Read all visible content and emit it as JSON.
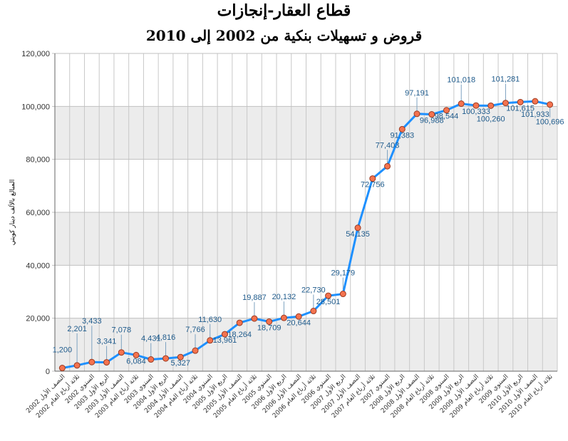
{
  "title": "قطاع العقار-إنجازات",
  "subtitle": "قروض و تسهيلات بنكية من 2002 إلى 2010",
  "colors": {
    "line": "#1e90ff",
    "marker_fill": "#f4734f",
    "marker_stroke": "#9c3b22",
    "band": "#ececec",
    "label": "#1f5b8c"
  },
  "chart_data": {
    "type": "line",
    "title": "قطاع العقار-إنجازات",
    "subtitle": "قروض و تسهيلات بنكية من 2002 إلى 2010",
    "ylabel": "المبالغ بالألف دينار كويتي",
    "xlabel": "",
    "ylim": [
      0,
      120000
    ],
    "yticks": [
      "0",
      "20,000",
      "40,000",
      "60,000",
      "80,000",
      "100,000",
      "120,000"
    ],
    "ytick_values": [
      0,
      20000,
      40000,
      60000,
      80000,
      100000,
      120000
    ],
    "grid": true,
    "categories": [
      "النصف الأول 2002",
      "ثلاثة أرباع العام 2002",
      "السنوي 2002",
      "الربع الأول 2003",
      "النصف الأول 2003",
      "ثلاثة أرباع العام 2003",
      "السنوي 2003",
      "الربع الأول 2004",
      "النصف الأول 2004",
      "ثلاثة أرباع العام 2004",
      "السنوي 2004",
      "الربع الأول 2005",
      "النصف الأول 2005",
      "ثلاثة أرباع العام 2005",
      "السنوي 2005",
      "الربع الأول 2006",
      "النصف الأول 2006",
      "ثلاثة أرباع العام 2006",
      "السنوي 2006",
      "الربع الأول 2007",
      "النصف الأول 2007",
      "ثلاثة أرباع العام 2007",
      "السنوي 2007",
      "الربع الأول 2008",
      "النصف الأول 2008",
      "ثلاثة أرباع العام 2008",
      "السنوي 2008",
      "الربع الأول 2009",
      "النصف الأول 2009",
      "ثلاثة أرباع العام 2009",
      "السنوي 2009",
      "الربع الأول 2010",
      "النصف الأول 2010",
      "ثلاثة أرباع العام 2010"
    ],
    "values": [
      1200,
      2201,
      3433,
      3341,
      7078,
      6084,
      4431,
      4816,
      5327,
      7766,
      11630,
      13961,
      18264,
      19887,
      18709,
      20132,
      20644,
      22730,
      28501,
      29179,
      54135,
      72756,
      77403,
      91383,
      97191,
      96988,
      98544,
      101018,
      100333,
      100260,
      101281,
      101615,
      101933,
      100696
    ],
    "data_labels": [
      "1,200",
      "2,201",
      "3,433",
      "3,341",
      "7,078",
      "6,084",
      "4,431",
      "4,816",
      "5,327",
      "7,766",
      "11,630",
      "13,961",
      "18,264",
      "19,887",
      "18,709",
      "20,132",
      "20,644",
      "22,730",
      "28,501",
      "29,179",
      "54,135",
      "72,756",
      "77,403",
      "91,383",
      "97,191",
      "96,988",
      "98,544",
      "101,018",
      "100,333",
      "100,260",
      "101,281",
      "101,615",
      "101,933",
      "100,696"
    ]
  }
}
